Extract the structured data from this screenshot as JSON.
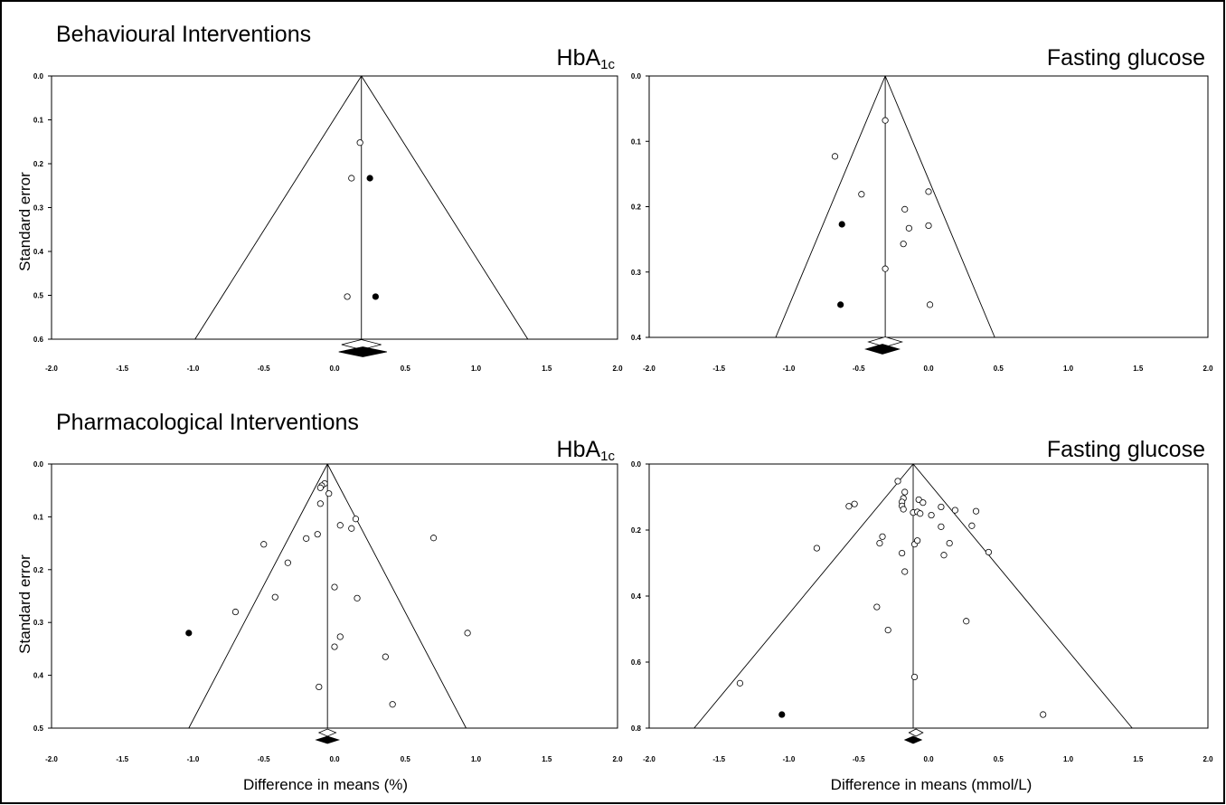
{
  "sections": {
    "top": "Behavioural Interventions",
    "bottom": "Pharmacological Interventions"
  },
  "titles": {
    "hba1c_main": "HbA",
    "hba1c_sub": "1c",
    "fasting": "Fasting glucose"
  },
  "axis_labels": {
    "ylabel": "Standard error",
    "xlabel_left": "Difference in means (%)",
    "xlabel_right": "Difference in means (mmol/L)"
  },
  "chart_data": [
    {
      "type": "scatter",
      "title": "HbA1c",
      "section": "Behavioural Interventions",
      "xlabel": "",
      "ylabel": "Standard error",
      "xlim": [
        -2.0,
        2.0
      ],
      "ylim": [
        0.0,
        0.6
      ],
      "y_inverted": true,
      "xticks": [
        "-2.0",
        "-1.5",
        "-1.0",
        "-0.5",
        "0.0",
        "0.5",
        "1.0",
        "1.5",
        "2.0"
      ],
      "yticks": [
        "0.0",
        "0.1",
        "0.2",
        "0.3",
        "0.4",
        "0.5",
        "0.6"
      ],
      "funnel_center": 0.19,
      "observed": [
        {
          "x": 0.18,
          "y": 0.152
        },
        {
          "x": 0.12,
          "y": 0.233
        },
        {
          "x": 0.09,
          "y": 0.503
        }
      ],
      "imputed": [
        {
          "x": 0.25,
          "y": 0.233
        },
        {
          "x": 0.29,
          "y": 0.503
        }
      ],
      "summary_observed": {
        "estimate": 0.19,
        "low": 0.05,
        "high": 0.33
      },
      "summary_adjusted": {
        "estimate": 0.2,
        "low": 0.03,
        "high": 0.37
      }
    },
    {
      "type": "scatter",
      "title": "Fasting glucose",
      "section": "Behavioural Interventions",
      "xlabel": "",
      "ylabel": "",
      "xlim": [
        -2.0,
        2.0
      ],
      "ylim": [
        0.0,
        0.4
      ],
      "y_inverted": true,
      "xticks": [
        "-2.0",
        "-1.5",
        "-1.0",
        "-0.5",
        "0.0",
        "0.5",
        "1.0",
        "1.5",
        "2.0"
      ],
      "yticks": [
        "0.0",
        "0.1",
        "0.2",
        "0.3",
        "0.4"
      ],
      "funnel_center": -0.31,
      "observed": [
        {
          "x": -0.31,
          "y": 0.068
        },
        {
          "x": -0.67,
          "y": 0.123
        },
        {
          "x": -0.48,
          "y": 0.181
        },
        {
          "x": 0.0,
          "y": 0.177
        },
        {
          "x": -0.17,
          "y": 0.204
        },
        {
          "x": -0.14,
          "y": 0.233
        },
        {
          "x": 0.0,
          "y": 0.229
        },
        {
          "x": -0.18,
          "y": 0.257
        },
        {
          "x": -0.31,
          "y": 0.295
        },
        {
          "x": 0.01,
          "y": 0.35
        }
      ],
      "imputed": [
        {
          "x": -0.62,
          "y": 0.227
        },
        {
          "x": -0.63,
          "y": 0.35
        }
      ],
      "summary_observed": {
        "estimate": -0.31,
        "low": -0.43,
        "high": -0.19
      },
      "summary_adjusted": {
        "estimate": -0.33,
        "low": -0.45,
        "high": -0.21
      }
    },
    {
      "type": "scatter",
      "title": "HbA1c",
      "section": "Pharmacological Interventions",
      "xlabel": "Difference in means (%)",
      "ylabel": "Standard error",
      "xlim": [
        -2.0,
        2.0
      ],
      "ylim": [
        0.0,
        0.5
      ],
      "y_inverted": true,
      "xticks": [
        "-2.0",
        "-1.5",
        "-1.0",
        "-0.5",
        "0.0",
        "0.5",
        "1.0",
        "1.5",
        "2.0"
      ],
      "yticks": [
        "0.0",
        "0.1",
        "0.2",
        "0.3",
        "0.4",
        "0.5"
      ],
      "funnel_center": -0.05,
      "observed": [
        {
          "x": -0.07,
          "y": 0.037
        },
        {
          "x": -0.09,
          "y": 0.041
        },
        {
          "x": -0.1,
          "y": 0.045
        },
        {
          "x": -0.04,
          "y": 0.056
        },
        {
          "x": -0.1,
          "y": 0.075
        },
        {
          "x": 0.15,
          "y": 0.104
        },
        {
          "x": 0.04,
          "y": 0.116
        },
        {
          "x": 0.12,
          "y": 0.122
        },
        {
          "x": -0.12,
          "y": 0.133
        },
        {
          "x": -0.2,
          "y": 0.141
        },
        {
          "x": 0.7,
          "y": 0.14
        },
        {
          "x": -0.5,
          "y": 0.152
        },
        {
          "x": -0.33,
          "y": 0.187
        },
        {
          "x": 0.0,
          "y": 0.233
        },
        {
          "x": 0.16,
          "y": 0.254
        },
        {
          "x": -0.42,
          "y": 0.252
        },
        {
          "x": -0.7,
          "y": 0.28
        },
        {
          "x": 0.94,
          "y": 0.32
        },
        {
          "x": 0.04,
          "y": 0.327
        },
        {
          "x": 0.0,
          "y": 0.346
        },
        {
          "x": 0.36,
          "y": 0.365
        },
        {
          "x": -0.11,
          "y": 0.422
        },
        {
          "x": 0.41,
          "y": 0.455
        }
      ],
      "imputed": [
        {
          "x": -1.03,
          "y": 0.32
        }
      ],
      "summary_observed": {
        "estimate": -0.05,
        "low": -0.11,
        "high": 0.01
      },
      "summary_adjusted": {
        "estimate": -0.05,
        "low": -0.13,
        "high": 0.03
      }
    },
    {
      "type": "scatter",
      "title": "Fasting glucose",
      "section": "Pharmacological Interventions",
      "xlabel": "Difference in means (mmol/L)",
      "ylabel": "",
      "xlim": [
        -2.0,
        2.0
      ],
      "ylim": [
        0.0,
        0.8
      ],
      "y_inverted": true,
      "xticks": [
        "-2.0",
        "-1.5",
        "-1.0",
        "-0.5",
        "0.0",
        "0.5",
        "1.0",
        "1.5",
        "2.0"
      ],
      "yticks": [
        "0.0",
        "0.2",
        "0.4",
        "0.6",
        "0.8"
      ],
      "funnel_center": -0.11,
      "observed": [
        {
          "x": -0.22,
          "y": 0.052
        },
        {
          "x": -0.17,
          "y": 0.085
        },
        {
          "x": -0.07,
          "y": 0.108
        },
        {
          "x": -0.18,
          "y": 0.104
        },
        {
          "x": -0.19,
          "y": 0.115
        },
        {
          "x": -0.04,
          "y": 0.117
        },
        {
          "x": -0.19,
          "y": 0.127
        },
        {
          "x": -0.18,
          "y": 0.137
        },
        {
          "x": 0.09,
          "y": 0.13
        },
        {
          "x": 0.19,
          "y": 0.14
        },
        {
          "x": 0.34,
          "y": 0.143
        },
        {
          "x": -0.11,
          "y": 0.147
        },
        {
          "x": -0.08,
          "y": 0.145
        },
        {
          "x": -0.06,
          "y": 0.15
        },
        {
          "x": 0.02,
          "y": 0.155
        },
        {
          "x": -0.53,
          "y": 0.121
        },
        {
          "x": -0.57,
          "y": 0.128
        },
        {
          "x": 0.09,
          "y": 0.19
        },
        {
          "x": 0.31,
          "y": 0.187
        },
        {
          "x": -0.33,
          "y": 0.22
        },
        {
          "x": -0.35,
          "y": 0.24
        },
        {
          "x": -0.1,
          "y": 0.243
        },
        {
          "x": -0.08,
          "y": 0.232
        },
        {
          "x": 0.15,
          "y": 0.24
        },
        {
          "x": -0.8,
          "y": 0.255
        },
        {
          "x": 0.11,
          "y": 0.276
        },
        {
          "x": 0.43,
          "y": 0.267
        },
        {
          "x": -0.19,
          "y": 0.27
        },
        {
          "x": -0.17,
          "y": 0.326
        },
        {
          "x": -0.37,
          "y": 0.433
        },
        {
          "x": 0.27,
          "y": 0.476
        },
        {
          "x": -0.29,
          "y": 0.503
        },
        {
          "x": -0.1,
          "y": 0.645
        },
        {
          "x": -1.35,
          "y": 0.664
        },
        {
          "x": 0.82,
          "y": 0.759
        }
      ],
      "imputed": [
        {
          "x": -1.05,
          "y": 0.759
        }
      ],
      "summary_observed": {
        "estimate": -0.09,
        "low": -0.14,
        "high": -0.04
      },
      "summary_adjusted": {
        "estimate": -0.11,
        "low": -0.17,
        "high": -0.05
      }
    }
  ]
}
